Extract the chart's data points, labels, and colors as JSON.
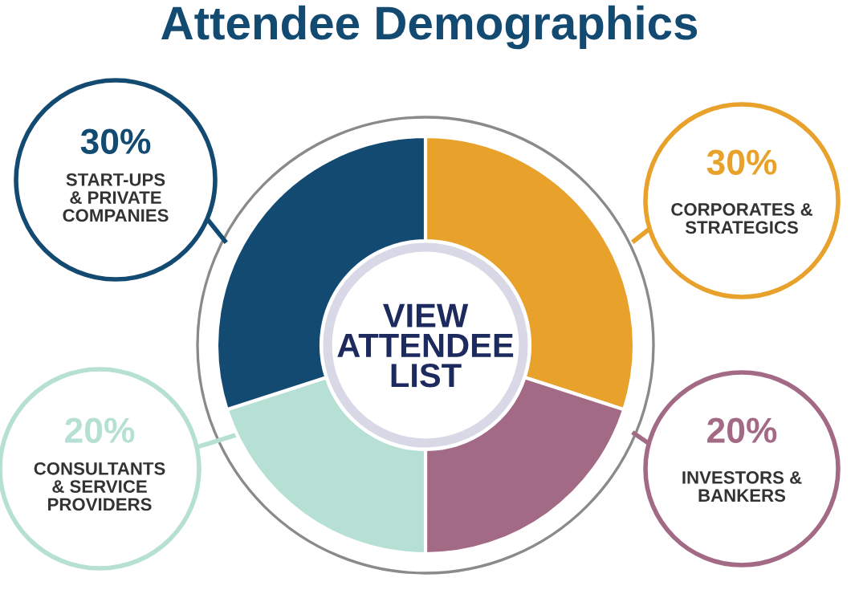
{
  "chart_data": {
    "type": "donut",
    "title": "Attendee Demographics",
    "categories": [
      "CORPORATES &\nSTRATEGICS",
      "INVESTORS &\nBANKERS",
      "CONSULTANTS\n& SERVICE\nPROVIDERS",
      "START-UPS\n& PRIVATE\nCOMPANIES"
    ],
    "values": [
      30,
      20,
      20,
      30
    ],
    "value_labels": [
      "30%",
      "20%",
      "20%",
      "30%"
    ],
    "colors": [
      "#e8a12a",
      "#a36a85",
      "#b5e0d3",
      "#134a72"
    ],
    "annotations": [
      "VIEW\nATTENDEE\nLIST"
    ],
    "legend": false
  }
}
